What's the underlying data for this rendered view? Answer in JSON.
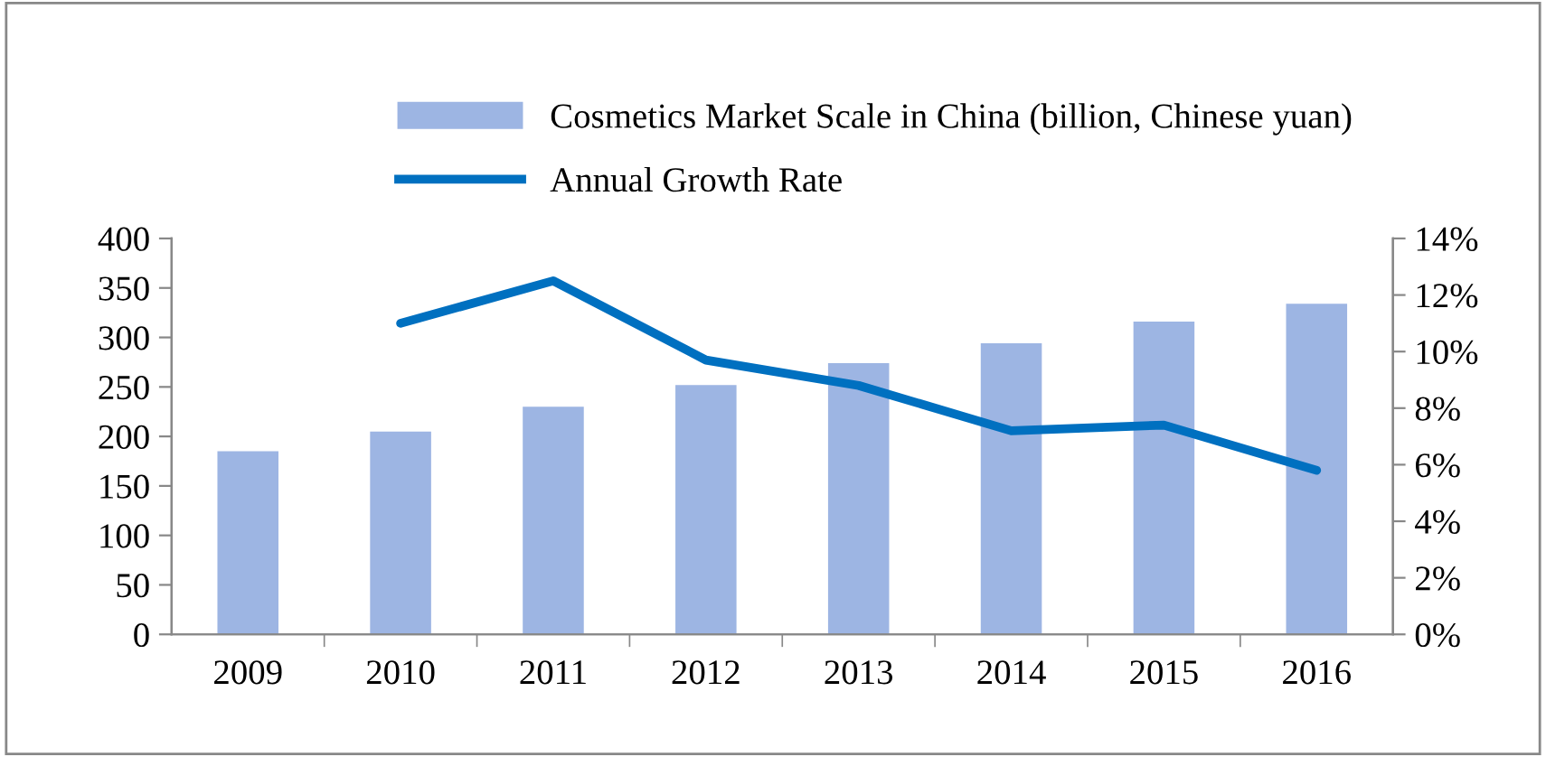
{
  "chart_data": {
    "type": "bar",
    "categories": [
      "2009",
      "2010",
      "2011",
      "2012",
      "2013",
      "2014",
      "2015",
      "2016"
    ],
    "series": [
      {
        "name": "Cosmetics Market Scale in China (billion, Chinese yuan)",
        "color": "#9db5e3",
        "values": [
          185,
          205,
          230,
          252,
          274,
          294,
          316,
          334
        ]
      },
      {
        "name": "Annual Growth Rate",
        "type": "line",
        "axis": "y2",
        "color": "#0070c0",
        "values": [
          null,
          11.0,
          12.5,
          9.7,
          8.8,
          7.2,
          7.4,
          5.8
        ]
      }
    ],
    "ylim": [
      0,
      400
    ],
    "yticks": [
      0,
      50,
      100,
      150,
      200,
      250,
      300,
      350,
      400
    ],
    "y2lim": [
      0,
      14
    ],
    "y2ticks": [
      {
        "value": 0,
        "label": "0%"
      },
      {
        "value": 2,
        "label": "2%"
      },
      {
        "value": 4,
        "label": "4%"
      },
      {
        "value": 6,
        "label": "6%"
      },
      {
        "value": 8,
        "label": "8%"
      },
      {
        "value": 10,
        "label": "10%"
      },
      {
        "value": 12,
        "label": "12%"
      },
      {
        "value": 14,
        "label": "14%"
      }
    ],
    "legend": "top",
    "grid": false,
    "marker": "none",
    "line_style": "solid"
  }
}
